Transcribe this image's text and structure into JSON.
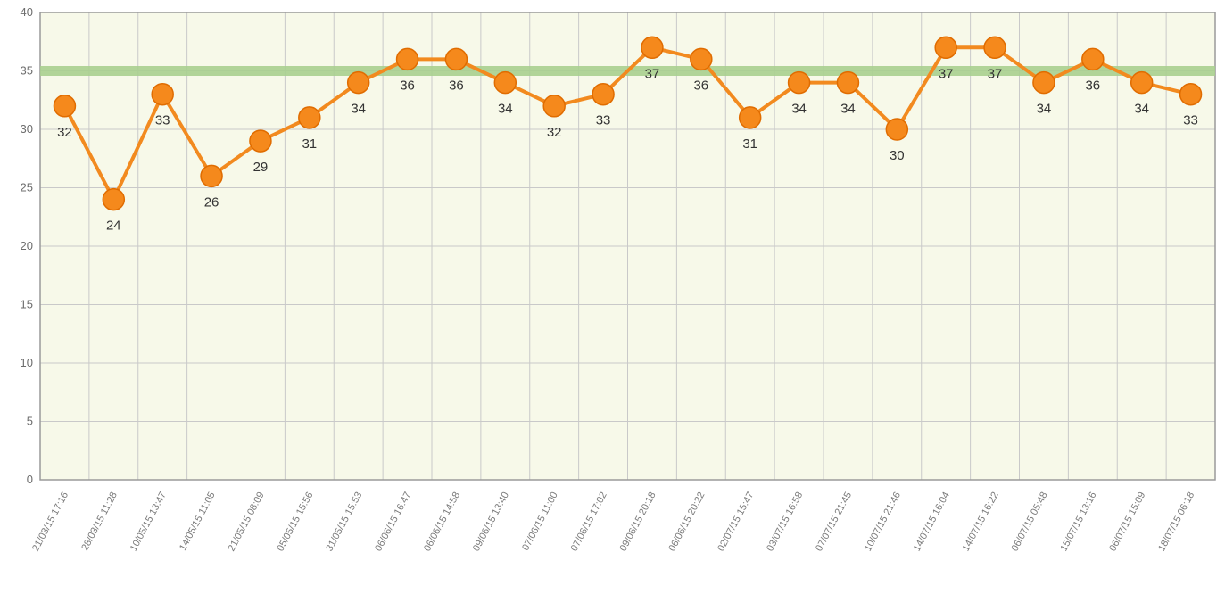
{
  "chart_data": {
    "type": "line",
    "title": "",
    "xlabel": "",
    "ylabel": "",
    "ylim": [
      0,
      40
    ],
    "yticks": [
      0,
      5,
      10,
      15,
      20,
      25,
      30,
      35,
      40
    ],
    "reference_line": {
      "value": 35,
      "color": "#a9cf8f"
    },
    "grid": true,
    "legend": "none",
    "colors": {
      "plot_background": "#f7f9e9",
      "grid": "#c9c9c9",
      "line": "#f28a1f",
      "marker": "#f5891c",
      "marker_edge": "#e06c00",
      "frame": "#9a9a9a"
    },
    "categories": [
      "21/03/15 17:16",
      "28/03/15 11:28",
      "10/05/15 13:47",
      "14/05/15 11:05",
      "21/05/15 08:09",
      "05/05/15 15:56",
      "31/05/15 15:53",
      "06/06/15 16:47",
      "06/06/15 14:58",
      "09/06/15 13:40",
      "07/06/15 11:00",
      "07/06/15 17:02",
      "09/06/15 20:18",
      "06/06/15 20:22",
      "02/07/15 15:47",
      "03/07/15 16:58",
      "07/07/15 21:45",
      "10/07/15 21:46",
      "14/07/15 16:04",
      "14/07/15 16:22",
      "06/07/15 05:48",
      "15/07/15 13:16",
      "06/07/15 15:09",
      "18/07/15 06:18"
    ],
    "values": [
      32,
      24,
      33,
      26,
      29,
      31,
      34,
      36,
      36,
      34,
      32,
      33,
      37,
      36,
      31,
      34,
      34,
      30,
      37,
      37,
      34,
      36,
      34,
      33
    ],
    "label_position": [
      "below",
      "below",
      "below",
      "below",
      "below",
      "below",
      "below",
      "below",
      "below",
      "below",
      "below",
      "below",
      "below",
      "below",
      "below",
      "below",
      "below",
      "below",
      "below",
      "below",
      "below",
      "below",
      "below",
      "below"
    ]
  }
}
